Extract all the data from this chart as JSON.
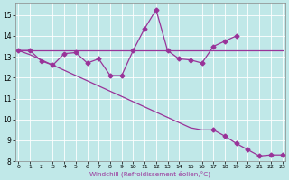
{
  "xlabel": "Windchill (Refroidissement éolien,°C)",
  "bg_color": "#c0e8e8",
  "line_color": "#993399",
  "x": [
    0,
    1,
    2,
    3,
    4,
    5,
    6,
    7,
    8,
    9,
    10,
    11,
    12,
    13,
    14,
    15,
    16,
    17,
    18,
    19,
    20,
    21,
    22,
    23
  ],
  "line_zigzag": [
    13.3,
    13.3,
    12.8,
    12.6,
    13.15,
    13.2,
    12.7,
    12.9,
    12.1,
    12.1,
    13.3,
    14.35,
    15.25,
    13.3,
    12.9,
    12.85,
    12.7,
    13.5,
    13.75,
    14.0,
    null,
    null,
    null,
    null
  ],
  "line_flat": [
    13.3,
    13.3,
    13.3,
    13.3,
    13.3,
    13.3,
    13.3,
    13.3,
    13.3,
    13.3,
    13.3,
    13.3,
    13.3,
    13.3,
    13.3,
    13.3,
    13.3,
    13.3,
    13.3,
    13.3,
    13.3,
    13.3,
    13.3,
    13.3
  ],
  "line_decline": [
    13.3,
    13.1,
    12.85,
    12.6,
    12.35,
    12.1,
    11.85,
    11.6,
    11.35,
    11.1,
    10.85,
    10.6,
    10.35,
    10.1,
    9.85,
    9.6,
    9.5,
    9.5,
    9.2,
    8.85,
    8.55,
    8.25,
    8.3,
    8.3
  ],
  "ylim": [
    8,
    15.6
  ],
  "xlim": [
    -0.3,
    23.3
  ],
  "yticks": [
    8,
    9,
    10,
    11,
    12,
    13,
    14,
    15
  ],
  "xticks": [
    0,
    1,
    2,
    3,
    4,
    5,
    6,
    7,
    8,
    9,
    10,
    11,
    12,
    13,
    14,
    15,
    16,
    17,
    18,
    19,
    20,
    21,
    22,
    23
  ],
  "marker_x": [
    0,
    1,
    2,
    3,
    4,
    5,
    6,
    7,
    8,
    9,
    10,
    11,
    12,
    13,
    14,
    15,
    16,
    17,
    18,
    19
  ],
  "decline_marker_x": [
    17,
    18,
    19,
    20,
    21,
    22,
    23
  ],
  "decline_marker_y": [
    9.5,
    9.2,
    8.85,
    8.55,
    8.25,
    8.3,
    8.3
  ]
}
